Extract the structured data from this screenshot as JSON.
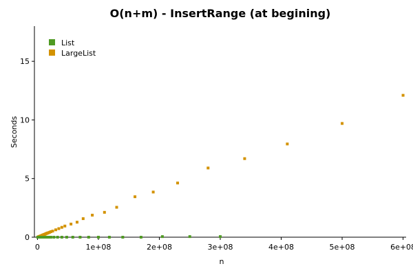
{
  "chart_data": {
    "type": "scatter",
    "title": "O(n+m) - InsertRange (at begining)",
    "xlabel": "n",
    "ylabel": "Seconds",
    "xlim": [
      -5000000,
      605000000
    ],
    "ylim": [
      0,
      18
    ],
    "x_ticks": [
      0,
      100000000,
      200000000,
      300000000,
      400000000,
      500000000,
      600000000
    ],
    "x_tick_labels": [
      "0",
      "1e+08",
      "2e+08",
      "3e+08",
      "4e+08",
      "5e+08",
      "6e+08"
    ],
    "y_ticks": [
      0,
      5,
      10,
      15
    ],
    "y_tick_labels": [
      "0",
      "5",
      "10",
      "15"
    ],
    "legend_position": "top-left",
    "grid": false,
    "series": [
      {
        "name": "List",
        "color": "#4f9a23",
        "x": [
          500000,
          1000000,
          2000000,
          3000000,
          4000000,
          5000000,
          7000000,
          9000000,
          11000000,
          13000000,
          15000000,
          18000000,
          22000000,
          27000000,
          33000000,
          40000000,
          48000000,
          58000000,
          70000000,
          84000000,
          100000000,
          118000000,
          140000000,
          170000000,
          205000000,
          250000000,
          300000000
        ],
        "y": [
          0.0,
          0.0,
          0.0,
          0.0,
          0.0,
          0.0,
          0.0,
          0.0,
          0.0,
          0.0,
          0.0,
          0.0,
          0.0,
          0.0,
          0.0,
          0.0,
          0.0,
          0.0,
          0.0,
          0.0,
          0.0,
          0.0,
          0.0,
          0.0,
          0.05,
          0.05,
          0.05
        ]
      },
      {
        "name": "LargeList",
        "color": "#d39200",
        "x": [
          500000,
          1000000,
          2000000,
          3000000,
          4000000,
          5000000,
          6000000,
          7000000,
          8000000,
          9000000,
          10000000,
          11000000,
          12000000,
          13000000,
          14000000,
          15000000,
          16000000,
          17000000,
          18000000,
          20000000,
          22000000,
          25000000,
          30000000,
          35000000,
          40000000,
          45000000,
          55000000,
          65000000,
          75000000,
          90000000,
          110000000,
          130000000,
          160000000,
          190000000,
          230000000,
          280000000,
          340000000,
          410000000,
          500000000,
          600000000
        ],
        "y": [
          0.0,
          0.02,
          0.04,
          0.06,
          0.08,
          0.1,
          0.12,
          0.14,
          0.17,
          0.19,
          0.21,
          0.23,
          0.25,
          0.27,
          0.3,
          0.32,
          0.34,
          0.36,
          0.38,
          0.42,
          0.47,
          0.52,
          0.63,
          0.73,
          0.84,
          0.95,
          1.12,
          1.28,
          1.58,
          1.88,
          2.12,
          2.55,
          3.45,
          3.85,
          4.62,
          5.9,
          6.7,
          7.95,
          9.7,
          12.1
        ]
      }
    ]
  }
}
